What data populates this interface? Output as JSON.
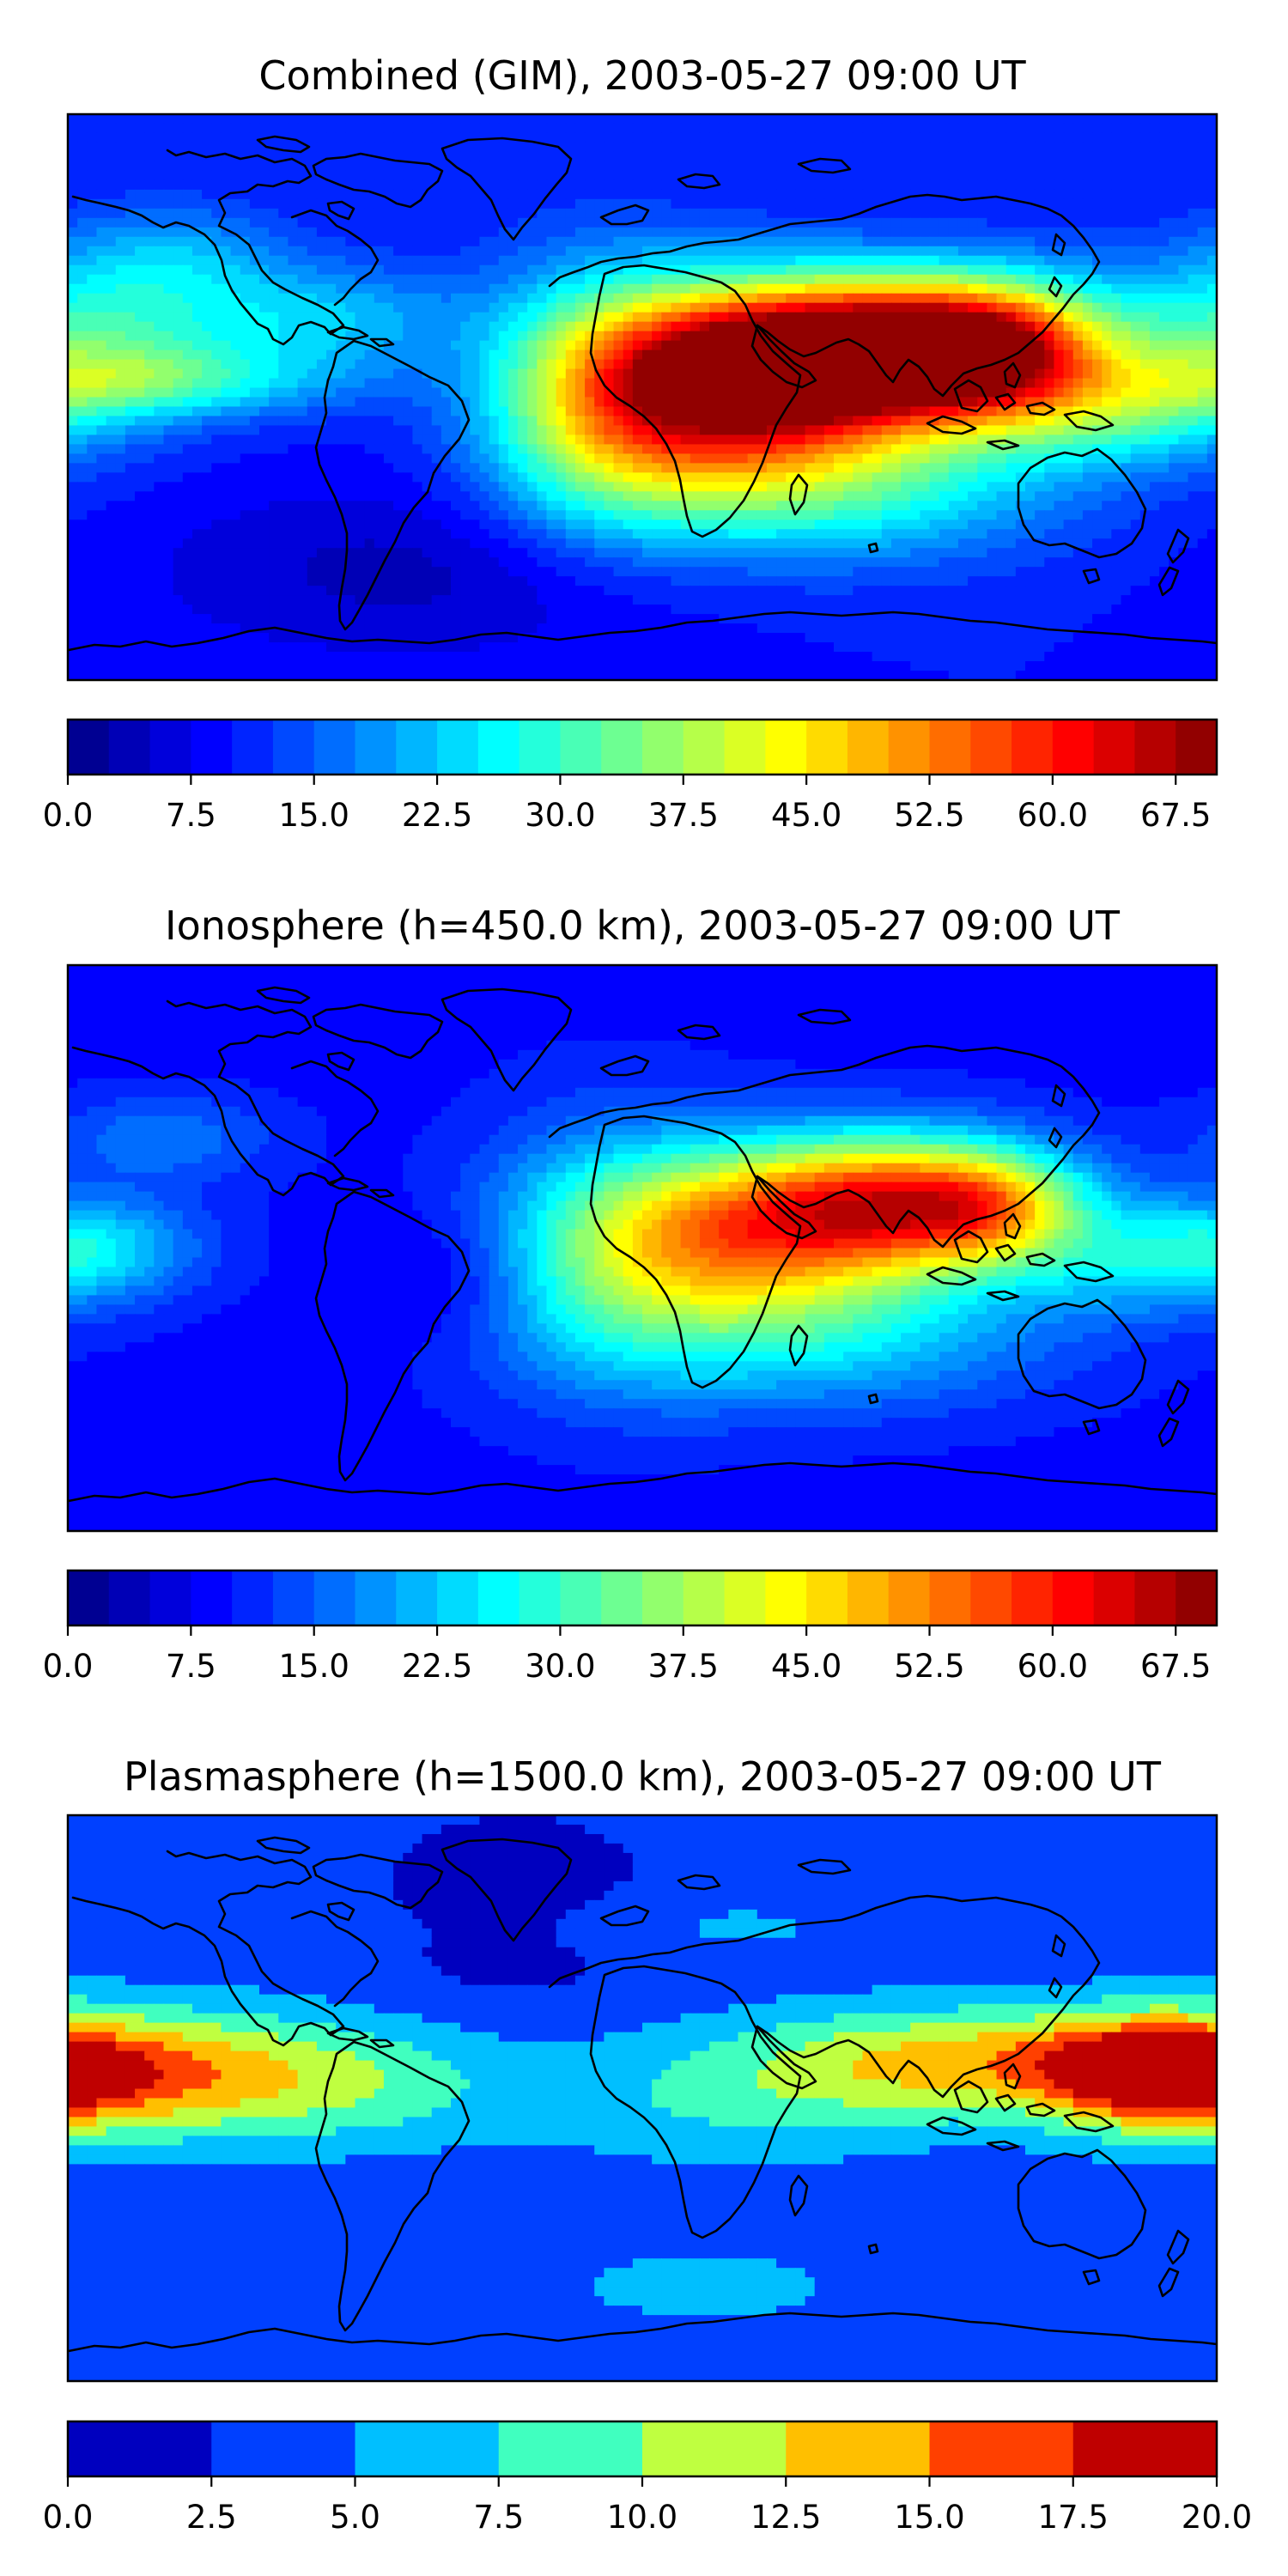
{
  "chart_data": [
    {
      "type": "heatmap",
      "title": "Combined (GIM), 2003-05-27 09:00 UT",
      "colorbar": {
        "levels": [
          0,
          2.5,
          5,
          7.5,
          10,
          12.5,
          15,
          17.5,
          20,
          22.5,
          25,
          27.5,
          30,
          32.5,
          35,
          37.5,
          40,
          42.5,
          45,
          47.5,
          50,
          52.5,
          55,
          57.5,
          60,
          62.5,
          65,
          67.5,
          70
        ],
        "tick_values": [
          0,
          7.5,
          15,
          22.5,
          30,
          37.5,
          45,
          52.5,
          60,
          67.5
        ],
        "tick_labels": [
          "0.0",
          "7.5",
          "15.0",
          "22.5",
          "30.0",
          "37.5",
          "45.0",
          "52.5",
          "60.0",
          "67.5"
        ],
        "range": [
          0,
          70
        ],
        "colormap": "jet"
      },
      "field": {
        "baseline": 10,
        "features": [
          {
            "lon": 85,
            "lat": 15,
            "amp": 58,
            "slon": 40,
            "slat": 16
          },
          {
            "lon": 40,
            "lat": 10,
            "amp": 30,
            "slon": 34,
            "slat": 16
          },
          {
            "lon": 15,
            "lat": 0,
            "amp": 30,
            "slon": 35,
            "slat": 24
          },
          {
            "lon": 110,
            "lat": 15,
            "amp": 20,
            "slon": 22,
            "slat": 14
          },
          {
            "lon": 60,
            "lat": -25,
            "amp": 20,
            "slon": 50,
            "slat": 18
          },
          {
            "lon": -15,
            "lat": 0,
            "amp": 15,
            "slon": 25,
            "slat": 30
          },
          {
            "lon": -170,
            "lat": 20,
            "amp": 17,
            "slon": 30,
            "slat": 18
          },
          {
            "lon": -100,
            "lat": 25,
            "amp": 12,
            "slon": 30,
            "slat": 12
          },
          {
            "lon": -145,
            "lat": 45,
            "amp": 8,
            "slon": 25,
            "slat": 12
          },
          {
            "lon": 150,
            "lat": -5,
            "amp": 14,
            "slon": 30,
            "slat": 12
          },
          {
            "lon": -150,
            "lat": 5,
            "amp": 14,
            "slon": 40,
            "slat": 8
          },
          {
            "lon": -70,
            "lat": -55,
            "amp": -6,
            "slon": 60,
            "slat": 20
          }
        ]
      }
    },
    {
      "type": "heatmap",
      "title": "Ionosphere  (h=450.0 km), 2003-05-27 09:00 UT",
      "colorbar": {
        "levels": [
          0,
          2.5,
          5,
          7.5,
          10,
          12.5,
          15,
          17.5,
          20,
          22.5,
          25,
          27.5,
          30,
          32.5,
          35,
          37.5,
          40,
          42.5,
          45,
          47.5,
          50,
          52.5,
          55,
          57.5,
          60,
          62.5,
          65,
          67.5,
          70
        ],
        "tick_values": [
          0,
          7.5,
          15,
          22.5,
          30,
          37.5,
          45,
          52.5,
          60,
          67.5
        ],
        "tick_labels": [
          "0.0",
          "7.5",
          "15.0",
          "22.5",
          "30.0",
          "37.5",
          "45.0",
          "52.5",
          "60.0",
          "67.5"
        ],
        "range": [
          0,
          70
        ],
        "colormap": "jet"
      },
      "field": {
        "baseline": 9,
        "features": [
          {
            "lon": 80,
            "lat": 15,
            "amp": 40,
            "slon": 35,
            "slat": 15
          },
          {
            "lon": 110,
            "lat": 12,
            "amp": 18,
            "slon": 20,
            "slat": 12
          },
          {
            "lon": 30,
            "lat": 5,
            "amp": 30,
            "slon": 38,
            "slat": 18
          },
          {
            "lon": 50,
            "lat": -25,
            "amp": 16,
            "slon": 55,
            "slat": 18
          },
          {
            "lon": -10,
            "lat": 0,
            "amp": 12,
            "slon": 30,
            "slat": 30
          },
          {
            "lon": -175,
            "lat": 0,
            "amp": 16,
            "slon": 25,
            "slat": 12
          },
          {
            "lon": -150,
            "lat": 35,
            "amp": 8,
            "slon": 25,
            "slat": 10
          },
          {
            "lon": 150,
            "lat": -5,
            "amp": 8,
            "slon": 25,
            "slat": 12
          },
          {
            "lon": -60,
            "lat": -10,
            "amp": -5,
            "slon": 20,
            "slat": 15
          }
        ]
      }
    },
    {
      "type": "heatmap",
      "title": "Plasmasphere (h=1500.0 km), 2003-05-27 09:00 UT",
      "colorbar": {
        "levels": [
          0,
          2.5,
          5,
          7.5,
          10,
          12.5,
          15,
          17.5,
          20
        ],
        "tick_values": [
          0,
          2.5,
          5,
          7.5,
          10,
          12.5,
          15,
          17.5,
          20
        ],
        "tick_labels": [
          "0.0",
          "2.5",
          "5.0",
          "7.5",
          "10.0",
          "12.5",
          "15.0",
          "17.5",
          "20.0"
        ],
        "range": [
          0,
          20
        ],
        "colormap": "jet"
      },
      "field": {
        "baseline": 3.5,
        "features": [
          {
            "lon": -160,
            "lat": 8,
            "amp": 11,
            "slon": 40,
            "slat": 14
          },
          {
            "lon": -90,
            "lat": 5,
            "amp": 5,
            "slon": 35,
            "slat": 14
          },
          {
            "lon": 160,
            "lat": 8,
            "amp": 12,
            "slon": 25,
            "slat": 12
          },
          {
            "lon": 100,
            "lat": 12,
            "amp": 9,
            "slon": 45,
            "slat": 12
          },
          {
            "lon": 30,
            "lat": 0,
            "amp": 4,
            "slon": 45,
            "slat": 15
          },
          {
            "lon": 10,
            "lat": 55,
            "amp": 2,
            "slon": 60,
            "slat": 8
          },
          {
            "lon": -40,
            "lat": 60,
            "amp": -3,
            "slon": 30,
            "slat": 20
          },
          {
            "lon": 20,
            "lat": -60,
            "amp": 3,
            "slon": 30,
            "slat": 8
          },
          {
            "lon": 90,
            "lat": 60,
            "amp": -1.5,
            "slon": 20,
            "slat": 5
          }
        ]
      }
    }
  ]
}
